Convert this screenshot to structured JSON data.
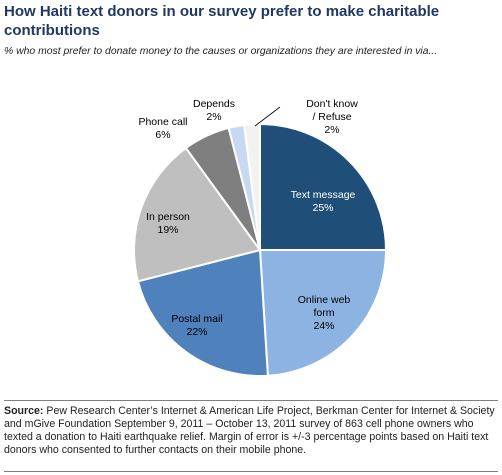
{
  "title": "How Haiti text donors in our survey prefer to make charitable contributions",
  "subtitle": "% who most prefer to donate money to the causes or organizations they are interested in via...",
  "source_label": "Source:",
  "source_text": "Pew Research Center’s Internet & American Life Project, Berkman Center for Internet & Society and mGive Foundation September 9, 2011 – October 13, 2011 survey of 863 cell phone owners who texted a donation to Haiti earthquake relief. Margin of error is +/-3 percentage points based on Haiti text donors who consented to further contacts on their mobile phone.",
  "chart_data": {
    "type": "pie",
    "start": "12 o'clock, clockwise",
    "slices": [
      {
        "label": "Text message",
        "value": 25,
        "display": "25%",
        "color": "#1f4e79"
      },
      {
        "label": "Online web form",
        "value": 24,
        "display": "24%",
        "color": "#8db3e2"
      },
      {
        "label": "Postal mail",
        "value": 22,
        "display": "22%",
        "color": "#4f81bd"
      },
      {
        "label": "In person",
        "value": 19,
        "display": "19%",
        "color": "#bfbfbf"
      },
      {
        "label": "Phone call",
        "value": 6,
        "display": "6%",
        "color": "#7f7f7f"
      },
      {
        "label": "Depends",
        "value": 2,
        "display": "2%",
        "color": "#c6d9f1"
      },
      {
        "label": "Don't know / Refuse",
        "value": 2,
        "display": "2%",
        "color": "#f2f2f2"
      }
    ]
  }
}
